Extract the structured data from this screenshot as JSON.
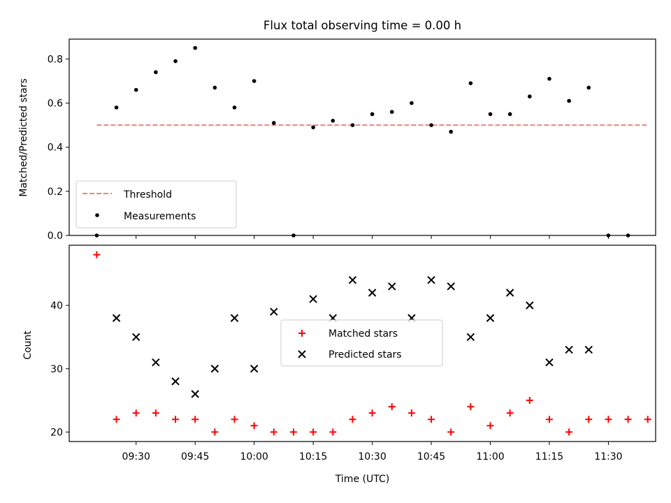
{
  "chart_data": [
    {
      "type": "scatter",
      "title": "Flux total observing time = 0.00 h",
      "ylabel": "Matched/Predicted stars",
      "ylim": [
        0,
        0.89
      ],
      "yticks": [
        0.0,
        0.2,
        0.4,
        0.6,
        0.8
      ],
      "yticklabels": [
        "0.0",
        "0.2",
        "0.4",
        "0.6",
        "0.8"
      ],
      "legend_position": "lower-left",
      "threshold": {
        "name": "Threshold",
        "value": 0.5,
        "color": "#f08080",
        "x_start": "09:20",
        "x_end": "11:40"
      },
      "series": [
        {
          "name": "Measurements",
          "color": "#000000",
          "marker": "dot",
          "x": [
            "09:20",
            "09:25",
            "09:30",
            "09:35",
            "09:40",
            "09:45",
            "09:50",
            "09:55",
            "10:00",
            "10:05",
            "10:10",
            "10:15",
            "10:20",
            "10:25",
            "10:30",
            "10:35",
            "10:40",
            "10:45",
            "10:50",
            "10:55",
            "11:00",
            "11:05",
            "11:10",
            "11:15",
            "11:20",
            "11:25",
            "11:30",
            "11:35",
            "11:40"
          ],
          "y": [
            0.0,
            0.58,
            0.66,
            0.74,
            0.79,
            0.85,
            0.67,
            0.58,
            0.7,
            0.51,
            0.0,
            0.49,
            0.52,
            0.5,
            0.55,
            0.56,
            0.6,
            0.5,
            0.47,
            0.69,
            0.55,
            0.55,
            0.63,
            0.71,
            0.61,
            0.67,
            0.0,
            0.0,
            null
          ]
        }
      ]
    },
    {
      "type": "scatter",
      "xlabel": "Time (UTC)",
      "ylabel": "Count",
      "ylim": [
        18.5,
        49.5
      ],
      "yticks": [
        20,
        30,
        40
      ],
      "yticklabels": [
        "20",
        "30",
        "40"
      ],
      "xlim": [
        "09:13",
        "11:42"
      ],
      "xticks": [
        "09:30",
        "09:45",
        "10:00",
        "10:15",
        "10:30",
        "10:45",
        "11:00",
        "11:15",
        "11:30"
      ],
      "xticklabels": [
        "09:30",
        "09:45",
        "10:00",
        "10:15",
        "10:30",
        "10:45",
        "11:00",
        "11:15",
        "11:30"
      ],
      "legend_position": "center",
      "series": [
        {
          "name": "Matched stars",
          "color": "#ff0000",
          "marker": "plus",
          "x": [
            "09:20",
            "09:25",
            "09:30",
            "09:35",
            "09:40",
            "09:45",
            "09:50",
            "09:55",
            "10:00",
            "10:05",
            "10:10",
            "10:15",
            "10:20",
            "10:25",
            "10:30",
            "10:35",
            "10:40",
            "10:45",
            "10:50",
            "10:55",
            "11:00",
            "11:05",
            "11:10",
            "11:15",
            "11:20",
            "11:25",
            "11:30",
            "11:35",
            "11:40"
          ],
          "y": [
            48,
            22,
            23,
            23,
            22,
            22,
            20,
            22,
            21,
            20,
            20,
            20,
            20,
            22,
            23,
            24,
            23,
            22,
            20,
            24,
            21,
            23,
            25,
            22,
            20,
            22,
            22,
            22,
            22
          ]
        },
        {
          "name": "Predicted stars",
          "color": "#000000",
          "marker": "x",
          "x": [
            "09:25",
            "09:30",
            "09:35",
            "09:40",
            "09:45",
            "09:50",
            "09:55",
            "10:00",
            "10:05",
            "10:15",
            "10:20",
            "10:25",
            "10:30",
            "10:35",
            "10:40",
            "10:45",
            "10:50",
            "10:55",
            "11:00",
            "11:05",
            "11:10",
            "11:15",
            "11:20",
            "11:25"
          ],
          "y": [
            38,
            35,
            31,
            28,
            26,
            30,
            38,
            30,
            39,
            41,
            38,
            44,
            42,
            43,
            38,
            44,
            43,
            35,
            38,
            42,
            40,
            31,
            33,
            33
          ]
        }
      ]
    }
  ]
}
